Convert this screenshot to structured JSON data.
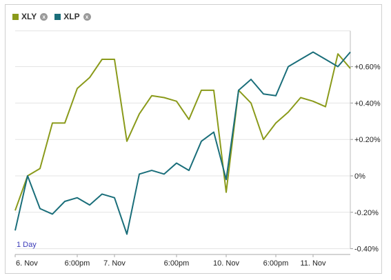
{
  "legend": [
    {
      "name": "XLY",
      "color": "#8a9a1a"
    },
    {
      "name": "XLP",
      "color": "#1a6e7a"
    }
  ],
  "close_glyph": "x",
  "range_label": "1 Day",
  "chart_data": {
    "type": "line",
    "title": "",
    "xlabel": "",
    "ylabel": "",
    "ylim": [
      -0.4,
      0.8
    ],
    "y_ticks": [
      {
        "value": 0.6,
        "label": "+0.60%"
      },
      {
        "value": 0.4,
        "label": "+0.40%"
      },
      {
        "value": 0.2,
        "label": "+0.20%"
      },
      {
        "value": 0.0,
        "label": "0%"
      },
      {
        "value": -0.2,
        "label": "-0.20%"
      },
      {
        "value": -0.4,
        "label": "-0.40%"
      }
    ],
    "x_ticks": [
      {
        "index": 0,
        "label": "6. Nov"
      },
      {
        "index": 5,
        "label": "6:00pm"
      },
      {
        "index": 8,
        "label": "7. Nov"
      },
      {
        "index": 13,
        "label": "6:00pm"
      },
      {
        "index": 17,
        "label": "10. Nov"
      },
      {
        "index": 21,
        "label": "6:00pm"
      },
      {
        "index": 24,
        "label": "11. Nov"
      }
    ],
    "x_count": 28,
    "grid": {
      "horizontal": true,
      "vertical": false
    },
    "legend_position": "top-left",
    "series": [
      {
        "name": "XLY",
        "color": "#8a9a1a",
        "values": [
          -0.19,
          0.0,
          0.04,
          0.29,
          0.29,
          0.48,
          0.54,
          0.64,
          0.64,
          0.19,
          0.34,
          0.44,
          0.43,
          0.41,
          0.31,
          0.47,
          0.47,
          -0.09,
          0.47,
          0.4,
          0.2,
          0.29,
          0.35,
          0.43,
          0.41,
          0.38,
          0.67,
          0.59
        ]
      },
      {
        "name": "XLP",
        "color": "#1a6e7a",
        "values": [
          -0.3,
          0.0,
          -0.18,
          -0.21,
          -0.14,
          -0.12,
          -0.16,
          -0.1,
          -0.12,
          -0.32,
          0.01,
          0.03,
          0.01,
          0.07,
          0.03,
          0.19,
          0.24,
          -0.02,
          0.47,
          0.53,
          0.45,
          0.44,
          0.6,
          0.64,
          0.68,
          0.64,
          0.6,
          0.68
        ]
      }
    ]
  }
}
